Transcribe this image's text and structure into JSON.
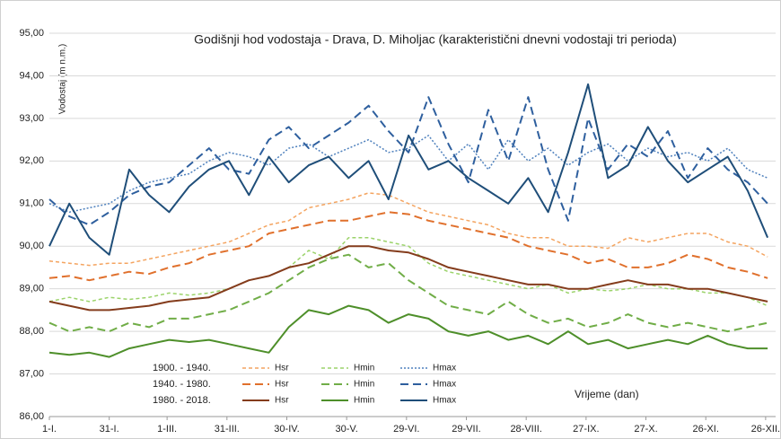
{
  "chart_data": {
    "type": "line",
    "title": "Godišnji hod vodostaja - Drava, D. Miholjac (karakteristični dnevni vodostaji tri perioda)",
    "y_label": "Vodostaj (m n.m.)",
    "x_label": "Vrijeme (dan)",
    "legend_groups": [
      "1900. - 1940.",
      "1940. - 1980.",
      "1980. - 2018."
    ],
    "x": [
      1,
      11,
      21,
      31,
      41,
      51,
      61,
      71,
      81,
      91,
      101,
      111,
      121,
      131,
      141,
      151,
      161,
      171,
      181,
      191,
      201,
      211,
      221,
      231,
      241,
      251,
      261,
      271,
      281,
      291,
      301,
      311,
      321,
      331,
      341,
      351,
      361
    ],
    "xlim": [
      1,
      365
    ],
    "xticks": [
      {
        "value": 1,
        "label": "1-I."
      },
      {
        "value": 31,
        "label": "31-I."
      },
      {
        "value": 60,
        "label": "1-III."
      },
      {
        "value": 90,
        "label": "31-III."
      },
      {
        "value": 120,
        "label": "30-IV."
      },
      {
        "value": 150,
        "label": "30-V."
      },
      {
        "value": 180,
        "label": "29-VI."
      },
      {
        "value": 210,
        "label": "29-VII."
      },
      {
        "value": 240,
        "label": "28-VIII."
      },
      {
        "value": 270,
        "label": "27-IX."
      },
      {
        "value": 300,
        "label": "27-X."
      },
      {
        "value": 330,
        "label": "26-XI."
      },
      {
        "value": 360,
        "label": "26-XII."
      }
    ],
    "ylim": [
      86,
      95
    ],
    "yticks": [
      {
        "value": 86,
        "label": "86,00"
      },
      {
        "value": 87,
        "label": "87,00"
      },
      {
        "value": 88,
        "label": "88,00"
      },
      {
        "value": 89,
        "label": "89,00"
      },
      {
        "value": 90,
        "label": "90,00"
      },
      {
        "value": 91,
        "label": "91,00"
      },
      {
        "value": 92,
        "label": "92,00"
      },
      {
        "value": 93,
        "label": "93,00"
      },
      {
        "value": 94,
        "label": "94,00"
      },
      {
        "value": 95,
        "label": "95,00"
      }
    ],
    "grid": true,
    "series": [
      {
        "name": "Hsr",
        "group": 0,
        "color": "#f4a460",
        "dash": "4 3",
        "width": 1.5,
        "values": [
          89.65,
          89.6,
          89.55,
          89.6,
          89.6,
          89.7,
          89.8,
          89.9,
          90.0,
          90.1,
          90.3,
          90.5,
          90.6,
          90.9,
          91.0,
          91.1,
          91.25,
          91.2,
          91.0,
          90.8,
          90.7,
          90.6,
          90.5,
          90.3,
          90.2,
          90.2,
          90.0,
          90.0,
          89.95,
          90.2,
          90.1,
          90.2,
          90.3,
          90.3,
          90.1,
          90.0,
          89.75
        ]
      },
      {
        "name": "Hmin",
        "group": 0,
        "color": "#9bd36a",
        "dash": "4 3",
        "width": 1.5,
        "values": [
          88.7,
          88.8,
          88.7,
          88.8,
          88.75,
          88.8,
          88.9,
          88.85,
          88.9,
          89.0,
          89.2,
          89.3,
          89.5,
          89.9,
          89.7,
          90.2,
          90.2,
          90.1,
          90.0,
          89.6,
          89.4,
          89.3,
          89.2,
          89.1,
          89.0,
          89.1,
          88.9,
          89.0,
          88.95,
          89.0,
          89.1,
          89.0,
          89.0,
          88.9,
          88.9,
          88.8,
          88.6
        ]
      },
      {
        "name": "Hmax",
        "group": 0,
        "color": "#4f81bd",
        "dash": "2 2",
        "width": 1.5,
        "values": [
          91.0,
          90.8,
          90.9,
          91.0,
          91.3,
          91.5,
          91.6,
          91.7,
          92.0,
          92.2,
          92.1,
          91.9,
          92.3,
          92.4,
          92.1,
          92.3,
          92.5,
          92.2,
          92.3,
          92.6,
          92.0,
          92.4,
          91.8,
          92.5,
          92.0,
          92.3,
          91.9,
          92.2,
          92.4,
          92.0,
          92.3,
          92.1,
          92.2,
          92.0,
          92.3,
          91.8,
          91.6
        ]
      },
      {
        "name": "Hsr",
        "group": 1,
        "color": "#e0702c",
        "dash": "9 5",
        "width": 2,
        "values": [
          89.25,
          89.3,
          89.2,
          89.3,
          89.4,
          89.35,
          89.5,
          89.6,
          89.8,
          89.9,
          90.0,
          90.3,
          90.4,
          90.5,
          90.6,
          90.6,
          90.7,
          90.8,
          90.75,
          90.6,
          90.5,
          90.4,
          90.3,
          90.2,
          90.0,
          89.9,
          89.8,
          89.6,
          89.7,
          89.5,
          89.5,
          89.6,
          89.8,
          89.7,
          89.5,
          89.4,
          89.25
        ]
      },
      {
        "name": "Hmin",
        "group": 1,
        "color": "#70ad47",
        "dash": "9 5",
        "width": 2,
        "values": [
          88.2,
          88.0,
          88.1,
          88.0,
          88.2,
          88.1,
          88.3,
          88.3,
          88.4,
          88.5,
          88.7,
          88.9,
          89.2,
          89.5,
          89.7,
          89.8,
          89.5,
          89.6,
          89.2,
          88.9,
          88.6,
          88.5,
          88.4,
          88.7,
          88.4,
          88.2,
          88.3,
          88.1,
          88.2,
          88.4,
          88.2,
          88.1,
          88.2,
          88.1,
          88.0,
          88.1,
          88.2
        ]
      },
      {
        "name": "Hmax",
        "group": 1,
        "color": "#2e5f9e",
        "dash": "9 5",
        "width": 2,
        "values": [
          91.1,
          90.7,
          90.5,
          90.8,
          91.2,
          91.4,
          91.5,
          91.9,
          92.3,
          91.8,
          91.7,
          92.5,
          92.8,
          92.3,
          92.6,
          92.9,
          93.3,
          92.7,
          92.2,
          93.5,
          92.4,
          91.5,
          93.2,
          92.0,
          93.5,
          91.8,
          90.6,
          93.0,
          91.8,
          92.4,
          92.1,
          92.7,
          91.6,
          92.3,
          91.8,
          91.5,
          91.0
        ]
      },
      {
        "name": "Hsr",
        "group": 2,
        "color": "#843c1c",
        "dash": "",
        "width": 2,
        "values": [
          88.7,
          88.6,
          88.5,
          88.5,
          88.55,
          88.6,
          88.7,
          88.75,
          88.8,
          89.0,
          89.2,
          89.3,
          89.5,
          89.6,
          89.8,
          90.0,
          90.0,
          89.9,
          89.85,
          89.7,
          89.5,
          89.4,
          89.3,
          89.2,
          89.1,
          89.1,
          89.0,
          89.0,
          89.1,
          89.2,
          89.1,
          89.1,
          89.0,
          89.0,
          88.9,
          88.8,
          88.7
        ]
      },
      {
        "name": "Hmin",
        "group": 2,
        "color": "#4e8f2a",
        "dash": "",
        "width": 2,
        "values": [
          87.5,
          87.45,
          87.5,
          87.4,
          87.6,
          87.7,
          87.8,
          87.75,
          87.8,
          87.7,
          87.6,
          87.5,
          88.1,
          88.5,
          88.4,
          88.6,
          88.5,
          88.2,
          88.4,
          88.3,
          88.0,
          87.9,
          88.0,
          87.8,
          87.9,
          87.7,
          88.0,
          87.7,
          87.8,
          87.6,
          87.7,
          87.8,
          87.7,
          87.9,
          87.7,
          87.6,
          87.6
        ]
      },
      {
        "name": "Hmax",
        "group": 2,
        "color": "#1f4e79",
        "dash": "",
        "width": 2,
        "values": [
          90.0,
          91.0,
          90.2,
          89.8,
          91.8,
          91.2,
          90.8,
          91.4,
          91.8,
          92.0,
          91.2,
          92.1,
          91.5,
          91.9,
          92.1,
          91.6,
          92.0,
          91.1,
          92.6,
          91.8,
          92.0,
          91.6,
          91.3,
          91.0,
          91.6,
          90.8,
          92.2,
          93.8,
          91.6,
          91.9,
          92.8,
          92.0,
          91.5,
          91.8,
          92.1,
          91.3,
          90.2
        ]
      }
    ]
  }
}
